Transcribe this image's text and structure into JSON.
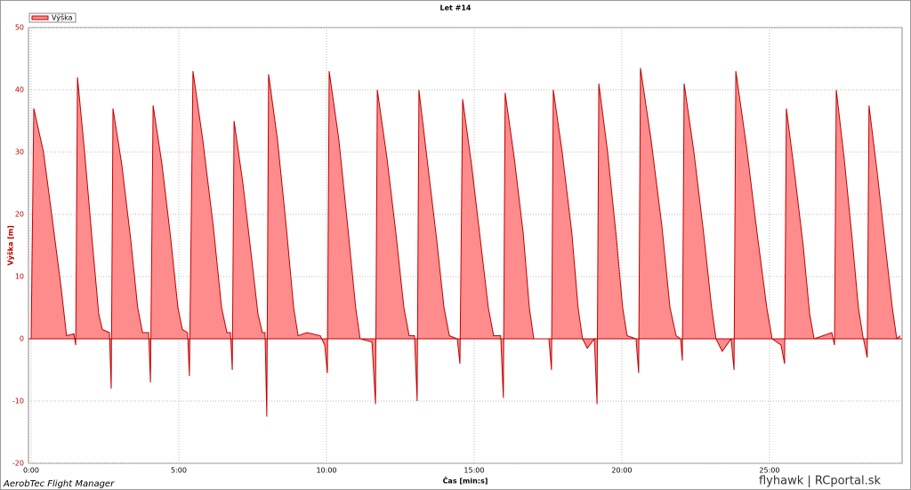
{
  "chart_data": {
    "type": "area",
    "title": "Let #14",
    "x_label": "Čas [min:s]",
    "y_label": "Výška [m]",
    "footer_left": "AerobTec Flight Manager",
    "footer_right": "flyhawk | RCportal.sk",
    "x": [
      0,
      0.09,
      0.42,
      0.75,
      1.02,
      1.2,
      1.45,
      1.51,
      1.57,
      1.81,
      2.08,
      2.29,
      2.41,
      2.65,
      2.71,
      2.77,
      3.07,
      3.37,
      3.61,
      3.77,
      3.98,
      4.04,
      4.13,
      4.43,
      4.73,
      4.97,
      5.12,
      5.3,
      5.36,
      5.48,
      5.81,
      6.17,
      6.45,
      6.63,
      6.75,
      6.81,
      6.87,
      7.17,
      7.44,
      7.68,
      7.83,
      7.92,
      7.98,
      8.04,
      8.34,
      8.64,
      8.89,
      9.04,
      9.34,
      9.79,
      9.94,
      10.03,
      10.09,
      10.42,
      10.72,
      10.99,
      11.14,
      11.54,
      11.66,
      11.72,
      12.05,
      12.35,
      12.62,
      12.8,
      12.98,
      13.07,
      13.13,
      13.43,
      13.73,
      13.98,
      14.16,
      14.43,
      14.52,
      14.61,
      14.91,
      15.21,
      15.48,
      15.66,
      15.9,
      15.99,
      16.05,
      16.36,
      16.66,
      16.87,
      17.02,
      17.53,
      17.62,
      17.68,
      17.98,
      18.31,
      18.52,
      18.67,
      18.83,
      19.07,
      19.16,
      19.22,
      19.52,
      19.82,
      20.03,
      20.18,
      20.48,
      20.57,
      20.63,
      20.99,
      21.36,
      21.63,
      21.84,
      21.99,
      22.05,
      22.11,
      22.44,
      22.77,
      23.04,
      23.19,
      23.4,
      23.7,
      23.8,
      23.86,
      24.22,
      24.58,
      24.91,
      25.09,
      25.39,
      25.51,
      25.57,
      25.84,
      26.14,
      26.36,
      26.51,
      27.11,
      27.2,
      27.26,
      27.53,
      27.8,
      28.01,
      28.16,
      28.31,
      28.37,
      28.64,
      28.92,
      29.16,
      29.31,
      29.43
    ],
    "series": [
      {
        "name": "Výška",
        "color": "#c00000",
        "fill": "#ff8c8c",
        "values": [
          0,
          37,
          30,
          18,
          8,
          0.5,
          0.8,
          -1,
          42,
          30,
          15,
          4,
          1.5,
          1,
          -8,
          37,
          28,
          16,
          5,
          1,
          1,
          -7,
          37.5,
          28,
          16,
          5,
          1.5,
          1,
          -6,
          43,
          32,
          18,
          5,
          1,
          1,
          -5,
          35,
          25,
          14,
          4,
          1,
          1,
          -12.5,
          42.5,
          32,
          18,
          5,
          0.5,
          1,
          0.5,
          -1,
          -5.5,
          43,
          32,
          18,
          5,
          0,
          -0.5,
          -10.5,
          40,
          29,
          17,
          5,
          0.5,
          0.5,
          -10,
          40,
          28,
          16,
          5,
          0.5,
          0,
          -4,
          38.5,
          28,
          16,
          5,
          0.5,
          0.5,
          -9.5,
          39.5,
          29,
          17,
          5,
          0,
          0,
          -5,
          40,
          30,
          17,
          5,
          0,
          -1.5,
          0,
          -10.5,
          41,
          30,
          16,
          5,
          0.5,
          0,
          -5.5,
          43.5,
          32,
          18,
          5,
          0.5,
          0,
          -3.5,
          41,
          30,
          17,
          5,
          0,
          -2,
          0,
          -5,
          43,
          31,
          17,
          5,
          0,
          -1,
          -4,
          37,
          27,
          15,
          4,
          0,
          1,
          -1,
          40,
          29,
          16,
          5,
          0.5,
          -3,
          37.5,
          27,
          15,
          5,
          0,
          0.5
        ]
      }
    ],
    "xlim": [
      0,
      29.43
    ],
    "ylim": [
      -20,
      50
    ],
    "xticks": [
      {
        "value": 0,
        "label": "0:00"
      },
      {
        "value": 5,
        "label": "5:00"
      },
      {
        "value": 10,
        "label": "10:00"
      },
      {
        "value": 15,
        "label": "15:00"
      },
      {
        "value": 20,
        "label": "20:00"
      },
      {
        "value": 25,
        "label": "25:00"
      }
    ],
    "yticks": [
      -20,
      -10,
      0,
      10,
      20,
      30,
      40,
      50
    ],
    "grid": true
  }
}
